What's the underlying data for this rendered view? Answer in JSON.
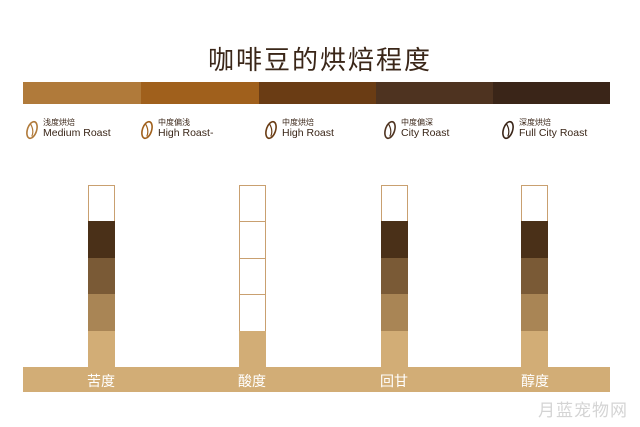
{
  "title": "咖啡豆的烘焙程度",
  "roast_levels": [
    {
      "cn": "浅度烘焙",
      "en": "Medium Roast",
      "color": "#b07a3a"
    },
    {
      "cn": "中度偏浅",
      "en": "High Roast-",
      "color": "#a0601c"
    },
    {
      "cn": "中度烘焙",
      "en": "High Roast",
      "color": "#6a3c14"
    },
    {
      "cn": "中度偏深",
      "en": "City Roast",
      "color": "#4e3320"
    },
    {
      "cn": "深度烘焙",
      "en": "Full City Roast",
      "color": "#3a2518"
    }
  ],
  "level_colors": [
    "#d2ad76",
    "#a98555",
    "#7a5a36",
    "#4a3018"
  ],
  "attributes": [
    {
      "label": "苦度",
      "level": 4
    },
    {
      "label": "酸度",
      "level": 1
    },
    {
      "label": "回甘",
      "level": 4
    },
    {
      "label": "醇度",
      "level": 4
    }
  ],
  "watermark": "月蓝宠物网"
}
